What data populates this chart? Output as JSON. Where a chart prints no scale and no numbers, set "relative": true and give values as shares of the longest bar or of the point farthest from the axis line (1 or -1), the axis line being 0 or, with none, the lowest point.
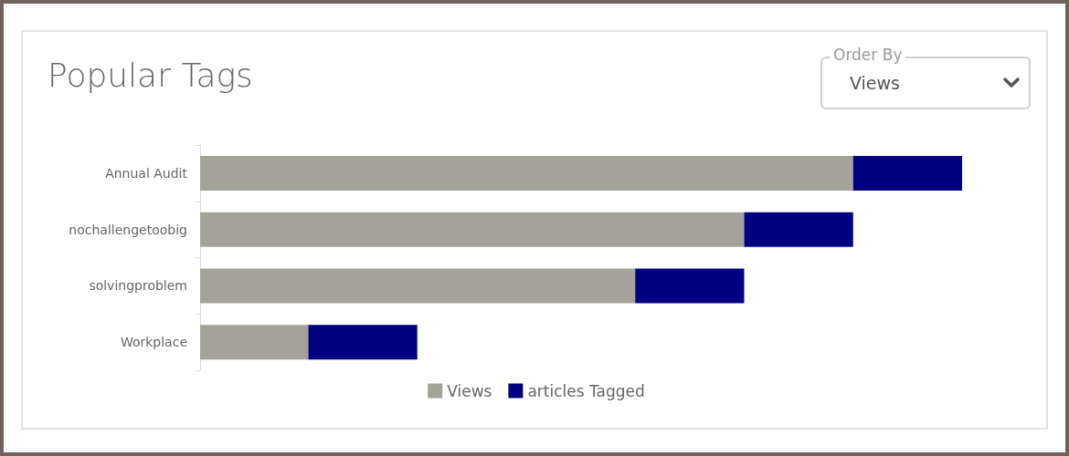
{
  "chart_data": {
    "type": "bar",
    "title": "Popular Tags",
    "orientation": "horizontal",
    "stacked": true,
    "relative": true,
    "categories": [
      "Annual Audit",
      "nochallengetoobig",
      "solvingproblem",
      "Workplace"
    ],
    "series": [
      {
        "name": "Views",
        "color": "#a3a39a",
        "values": [
          0.857,
          0.714,
          0.571,
          0.142
        ]
      },
      {
        "name": "articles Tagged",
        "color": "#000080",
        "values": [
          0.143,
          0.143,
          0.143,
          0.143
        ]
      }
    ],
    "legend": "bottom",
    "annotations": [
      "Order By",
      "Views"
    ]
  }
}
